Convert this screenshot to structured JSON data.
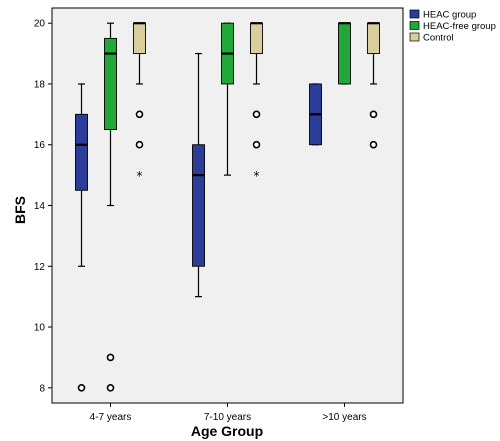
{
  "chart_data": {
    "type": "boxplot",
    "xlabel": "Age Group",
    "ylabel": "BFS",
    "categories": [
      "4-7 years",
      "7-10 years",
      ">10 years"
    ],
    "ylim": [
      7.5,
      20.5
    ],
    "yticks": [
      8,
      10,
      12,
      14,
      16,
      18,
      20
    ],
    "grid": false,
    "legend_placement": "top-right",
    "series": [
      {
        "name": "HEAC group",
        "color": "#2b3c99",
        "boxes": [
          {
            "category": "4-7 years",
            "whisker_low": 12,
            "q1": 14.5,
            "median": 16,
            "q3": 17,
            "whisker_high": 18,
            "outliers": [
              8
            ],
            "extremes": []
          },
          {
            "category": "7-10 years",
            "whisker_low": 11,
            "q1": 12,
            "median": 15,
            "q3": 16,
            "whisker_high": 19,
            "outliers": [],
            "extremes": []
          },
          {
            "category": ">10 years",
            "whisker_low": 16,
            "q1": 16,
            "median": 17,
            "q3": 18,
            "whisker_high": 18,
            "outliers": [],
            "extremes": []
          }
        ]
      },
      {
        "name": "HEAC-free group",
        "color": "#22a838",
        "boxes": [
          {
            "category": "4-7 years",
            "whisker_low": 14,
            "q1": 16.5,
            "median": 19,
            "q3": 19.5,
            "whisker_high": 20,
            "outliers": [
              9,
              8
            ],
            "extremes": []
          },
          {
            "category": "7-10 years",
            "whisker_low": 15,
            "q1": 18,
            "median": 19,
            "q3": 20,
            "whisker_high": 20,
            "outliers": [],
            "extremes": []
          },
          {
            "category": ">10 years",
            "whisker_low": 18,
            "q1": 18,
            "median": 20,
            "q3": 20,
            "whisker_high": 20,
            "outliers": [],
            "extremes": []
          }
        ]
      },
      {
        "name": "Control",
        "color": "#d8cf9c",
        "boxes": [
          {
            "category": "4-7 years",
            "whisker_low": 18,
            "q1": 19,
            "median": 20,
            "q3": 20,
            "whisker_high": 20,
            "outliers": [
              17,
              16
            ],
            "extremes": [
              15
            ]
          },
          {
            "category": "7-10 years",
            "whisker_low": 18,
            "q1": 19,
            "median": 20,
            "q3": 20,
            "whisker_high": 20,
            "outliers": [
              17,
              16
            ],
            "extremes": [
              15
            ]
          },
          {
            "category": ">10 years",
            "whisker_low": 18,
            "q1": 19,
            "median": 20,
            "q3": 20,
            "whisker_high": 20,
            "outliers": [
              17,
              16
            ],
            "extremes": []
          }
        ]
      }
    ]
  },
  "legend": {
    "items": [
      {
        "label": "HEAC group",
        "color": "#2b3c99"
      },
      {
        "label": "HEAC-free group",
        "color": "#22a838"
      },
      {
        "label": "Control",
        "color": "#d8cf9c"
      }
    ]
  },
  "colors": {
    "plot_background": "#f0f0f0",
    "page_background": "#ffffff"
  }
}
